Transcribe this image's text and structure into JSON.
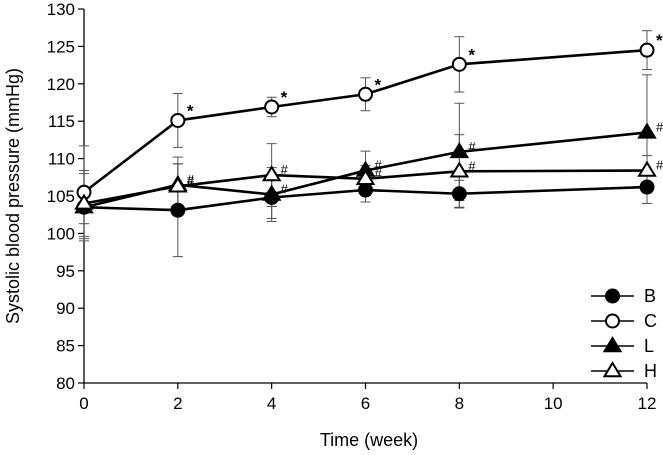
{
  "chart_data": {
    "type": "line",
    "xlabel": "Time (week)",
    "ylabel": "Systolic blood pressure (mmHg)",
    "xlim": [
      0,
      12
    ],
    "ylim": [
      80,
      130
    ],
    "xticks": [
      0,
      2,
      4,
      6,
      8,
      10,
      12
    ],
    "yticks": [
      80,
      85,
      90,
      95,
      100,
      105,
      110,
      115,
      120,
      125,
      130
    ],
    "x": [
      0,
      2,
      4,
      6,
      8,
      12
    ],
    "grid": false,
    "legend_position": "bottom-right",
    "series": [
      {
        "name": "B",
        "marker": "filled-circle",
        "values": [
          103.5,
          103.1,
          104.8,
          105.8,
          105.3,
          106.2
        ],
        "errors": [
          4.5,
          6.2,
          2.8,
          1.6,
          1.8,
          2.2
        ],
        "annotations": [
          "",
          "",
          "",
          "",
          "",
          ""
        ]
      },
      {
        "name": "C",
        "marker": "open-circle",
        "values": [
          105.5,
          115.1,
          116.9,
          118.6,
          122.6,
          124.5
        ],
        "errors": [
          6.2,
          3.6,
          1.3,
          2.2,
          3.7,
          2.6
        ],
        "annotations": [
          "",
          "*",
          "*",
          "*",
          "*",
          "*"
        ]
      },
      {
        "name": "L",
        "marker": "filled-triangle",
        "values": [
          103.5,
          106.5,
          105.2,
          108.4,
          110.9,
          113.5
        ],
        "errors": [
          2.2,
          2.8,
          3.6,
          2.6,
          6.5,
          7.7
        ],
        "annotations": [
          "",
          "#",
          "#",
          "#",
          "#",
          "#"
        ]
      },
      {
        "name": "H",
        "marker": "open-triangle",
        "values": [
          104.0,
          106.3,
          107.8,
          107.3,
          108.3,
          108.4
        ],
        "errors": [
          4.4,
          3.9,
          4.2,
          1.8,
          4.9,
          2.0
        ],
        "annotations": [
          "",
          "#",
          "#",
          "#",
          "#",
          "#"
        ]
      }
    ]
  }
}
